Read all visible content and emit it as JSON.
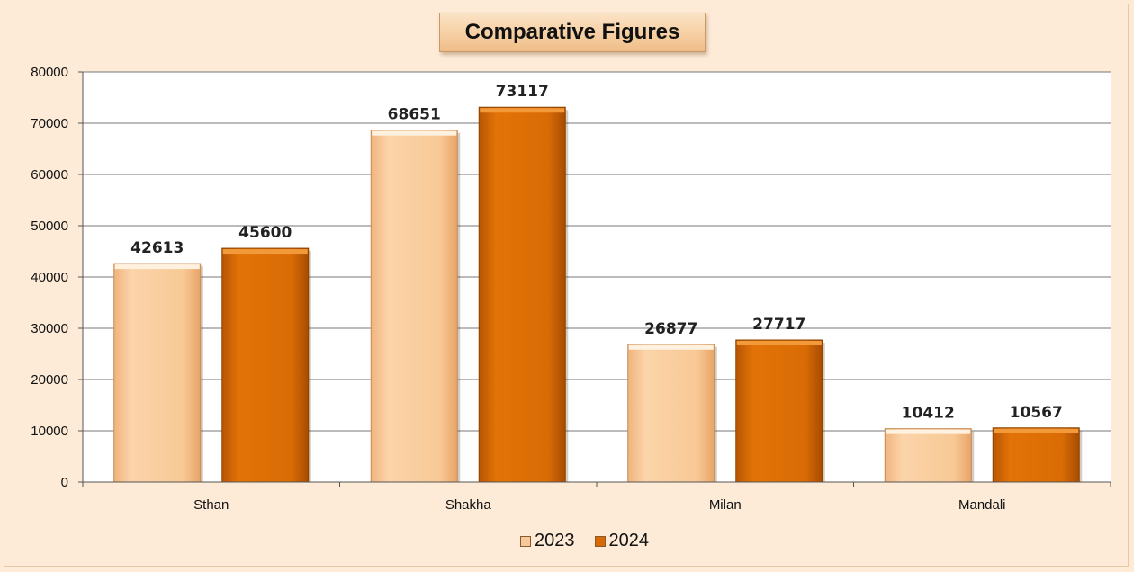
{
  "chart_data": {
    "type": "bar",
    "title": "Comparative Figures",
    "categories": [
      "Sthan",
      "Shakha",
      "Milan",
      "Mandali"
    ],
    "series": [
      {
        "name": "2023",
        "values": [
          42613,
          68651,
          26877,
          10412
        ],
        "color": "#f7c89c"
      },
      {
        "name": "2024",
        "values": [
          45600,
          73117,
          27717,
          10567
        ],
        "color": "#d86a05"
      }
    ],
    "ylim": [
      0,
      80000
    ],
    "yticks": [
      "0",
      "10000",
      "20000",
      "30000",
      "40000",
      "50000",
      "60000",
      "70000",
      "80000"
    ],
    "grid": true,
    "legend": "bottom",
    "xlabel": "",
    "ylabel": ""
  }
}
